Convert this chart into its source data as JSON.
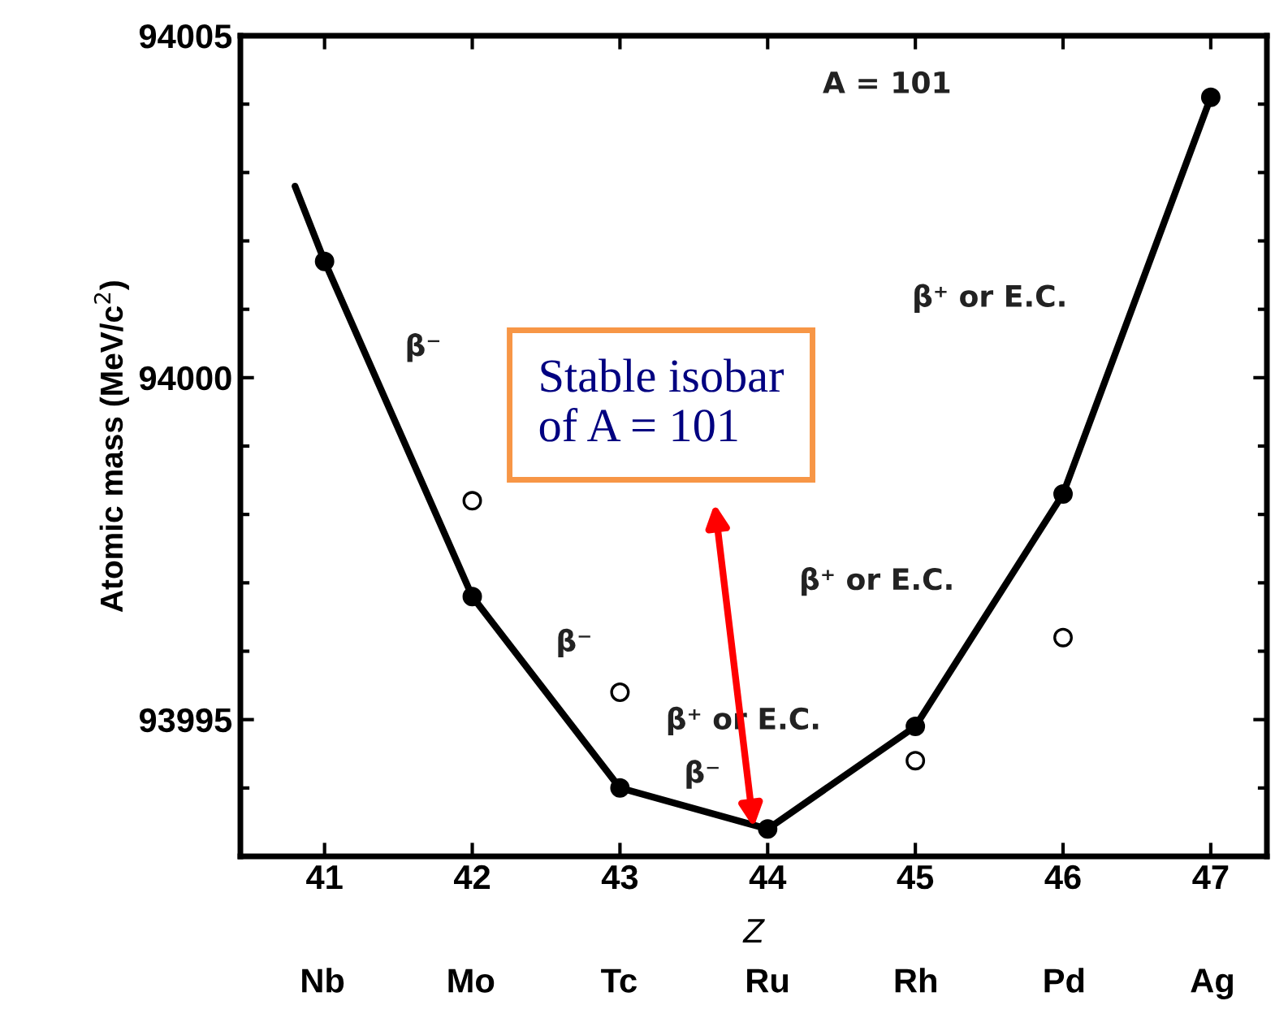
{
  "chart_data": {
    "type": "scatter",
    "xlabel": "Z",
    "ylabel": "Atomic mass (MeV/c$^{2}$)",
    "xlim": [
      40.43,
      47.38
    ],
    "ylim": [
      93993.0,
      94005
    ],
    "yticks": [
      93995,
      94000,
      94005
    ],
    "xticks": [
      41,
      42,
      43,
      44,
      45,
      46,
      47
    ],
    "grid": false,
    "legend": false,
    "series": [
      {
        "type": "line",
        "color": "#000000",
        "marker": "none",
        "x": [
          40.8,
          41,
          42,
          43,
          44,
          45,
          46,
          47
        ],
        "values": [
          94002.8,
          94001.7,
          93996.8,
          93994.0,
          93993.4,
          93994.9,
          93998.3,
          94004.1
        ]
      },
      {
        "color": "#000000",
        "marker": "circle",
        "x": [
          41,
          42,
          43,
          44,
          45,
          46,
          47
        ],
        "values": [
          94001.7,
          93996.8,
          93994.0,
          93993.4,
          93994.9,
          93998.3,
          94004.1
        ]
      },
      {
        "color": "#ffffff",
        "marker": "circle",
        "x": [
          42,
          43,
          45,
          46
        ],
        "values": [
          93998.2,
          93995.4,
          93994.4,
          93996.2
        ]
      }
    ],
    "annotations": [
      "A = 101",
      "β⁻",
      "β⁻",
      "β⁻",
      "β⁺ or E.C.",
      "β⁺ or E.C.",
      "β⁺ or E.C.",
      "Nb",
      "Mo",
      "Tc",
      "Ru",
      "Rh",
      "Pd",
      "Ag",
      "Stable isobar\nof A = 101"
    ]
  }
}
